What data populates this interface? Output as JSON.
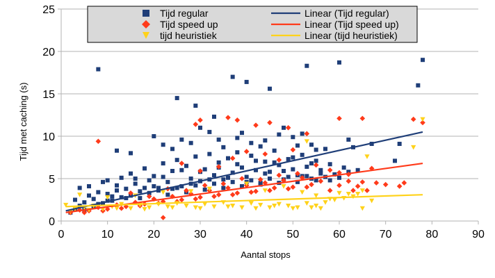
{
  "chart_data": {
    "type": "scatter",
    "title": "",
    "xlabel": "Aantal stops",
    "ylabel": "Tijd met caching (s)",
    "xlim": [
      0,
      90
    ],
    "ylim": [
      0,
      25
    ],
    "xticks": [
      0,
      10,
      20,
      30,
      40,
      50,
      60,
      70,
      80,
      90
    ],
    "yticks": [
      0,
      5,
      10,
      15,
      20,
      25
    ],
    "grid": "horizontal",
    "legend_position": "top",
    "series": [
      {
        "name": "Tijd regular",
        "color": "#1f3e78",
        "marker": "square",
        "points": [
          [
            8,
            17.9
          ],
          [
            25,
            14.5
          ],
          [
            29,
            13.6
          ],
          [
            33,
            12.3
          ],
          [
            37,
            17.0
          ],
          [
            40,
            16.4
          ],
          [
            45,
            15.6
          ],
          [
            53,
            18.3
          ],
          [
            60,
            18.7
          ],
          [
            77,
            16.0
          ],
          [
            78,
            19.0
          ],
          [
            12,
            8.3
          ],
          [
            15,
            8.0
          ],
          [
            20,
            10.0
          ],
          [
            22,
            9.0
          ],
          [
            24,
            8.5
          ],
          [
            26,
            9.6
          ],
          [
            28,
            9.2
          ],
          [
            30,
            11.0
          ],
          [
            32,
            10.5
          ],
          [
            34,
            9.6
          ],
          [
            35,
            8.7
          ],
          [
            38,
            9.8
          ],
          [
            39,
            10.4
          ],
          [
            41,
            9.2
          ],
          [
            43,
            8.8
          ],
          [
            44,
            9.5
          ],
          [
            47,
            10.2
          ],
          [
            48,
            11.0
          ],
          [
            50,
            9.9
          ],
          [
            51,
            8.9
          ],
          [
            52,
            10.3
          ],
          [
            54,
            9.0
          ],
          [
            55,
            8.4
          ],
          [
            57,
            8.5
          ],
          [
            62,
            9.6
          ],
          [
            63,
            8.7
          ],
          [
            67,
            9.1
          ],
          [
            72,
            7.1
          ],
          [
            73,
            9.1
          ],
          [
            64,
            6.0
          ],
          [
            2,
            1.0
          ],
          [
            3,
            2.5
          ],
          [
            4,
            1.8
          ],
          [
            5,
            2.2
          ],
          [
            6,
            3.0
          ],
          [
            7,
            2.6
          ],
          [
            8,
            3.4
          ],
          [
            9,
            4.6
          ],
          [
            10,
            3.2
          ],
          [
            10,
            4.8
          ],
          [
            11,
            2.9
          ],
          [
            12,
            4.2
          ],
          [
            13,
            5.1
          ],
          [
            14,
            3.8
          ],
          [
            15,
            5.6
          ],
          [
            16,
            4.4
          ],
          [
            17,
            3.5
          ],
          [
            18,
            6.2
          ],
          [
            19,
            4.8
          ],
          [
            20,
            5.3
          ],
          [
            21,
            3.9
          ],
          [
            22,
            6.8
          ],
          [
            23,
            4.6
          ],
          [
            24,
            5.9
          ],
          [
            25,
            7.2
          ],
          [
            26,
            4.1
          ],
          [
            27,
            6.5
          ],
          [
            28,
            5.0
          ],
          [
            29,
            7.6
          ],
          [
            30,
            4.7
          ],
          [
            31,
            6.1
          ],
          [
            32,
            7.9
          ],
          [
            33,
            5.4
          ],
          [
            34,
            6.9
          ],
          [
            35,
            4.9
          ],
          [
            36,
            7.4
          ],
          [
            37,
            5.7
          ],
          [
            38,
            8.1
          ],
          [
            39,
            6.3
          ],
          [
            40,
            5.2
          ],
          [
            41,
            7.7
          ],
          [
            42,
            6.0
          ],
          [
            43,
            4.5
          ],
          [
            44,
            7.0
          ],
          [
            45,
            5.8
          ],
          [
            46,
            8.3
          ],
          [
            47,
            6.6
          ],
          [
            48,
            4.9
          ],
          [
            49,
            7.3
          ],
          [
            50,
            6.1
          ],
          [
            51,
            5.4
          ],
          [
            52,
            7.8
          ],
          [
            53,
            6.4
          ],
          [
            54,
            5.0
          ],
          [
            55,
            7.1
          ],
          [
            56,
            6.0
          ],
          [
            57,
            5.2
          ],
          [
            58,
            6.7
          ],
          [
            59,
            5.5
          ],
          [
            61,
            6.3
          ],
          [
            62,
            5.8
          ],
          [
            3,
            1.4
          ],
          [
            5,
            1.3
          ],
          [
            7,
            1.7
          ],
          [
            9,
            2.1
          ],
          [
            11,
            2.4
          ],
          [
            13,
            2.8
          ],
          [
            15,
            3.0
          ],
          [
            17,
            2.7
          ],
          [
            19,
            3.3
          ],
          [
            21,
            3.6
          ],
          [
            23,
            3.1
          ],
          [
            25,
            3.9
          ],
          [
            27,
            3.4
          ],
          [
            29,
            4.2
          ],
          [
            31,
            3.7
          ],
          [
            33,
            4.4
          ],
          [
            35,
            3.9
          ],
          [
            37,
            4.6
          ],
          [
            39,
            4.1
          ],
          [
            41,
            4.8
          ],
          [
            43,
            4.3
          ],
          [
            45,
            5.0
          ],
          [
            47,
            4.5
          ],
          [
            49,
            5.2
          ],
          [
            51,
            4.6
          ],
          [
            53,
            5.3
          ],
          [
            55,
            4.8
          ],
          [
            4,
            3.9
          ],
          [
            6,
            4.1
          ],
          [
            8,
            2.0
          ],
          [
            10,
            2.4
          ],
          [
            12,
            3.6
          ],
          [
            14,
            2.7
          ],
          [
            16,
            5.0
          ],
          [
            18,
            3.9
          ],
          [
            20,
            4.1
          ],
          [
            22,
            5.2
          ],
          [
            24,
            3.8
          ],
          [
            26,
            6.0
          ],
          [
            28,
            4.4
          ],
          [
            30,
            5.8
          ],
          [
            32,
            4.9
          ],
          [
            34,
            6.3
          ],
          [
            36,
            5.1
          ],
          [
            38,
            6.7
          ],
          [
            40,
            4.6
          ],
          [
            42,
            7.1
          ],
          [
            44,
            5.6
          ],
          [
            46,
            6.9
          ],
          [
            48,
            5.9
          ],
          [
            50,
            7.5
          ],
          [
            52,
            5.3
          ],
          [
            54,
            6.8
          ],
          [
            56,
            5.6
          ],
          [
            58,
            4.8
          ],
          [
            60,
            5.1
          ]
        ]
      },
      {
        "name": "Tijd speed up",
        "color": "#ff3a1a",
        "marker": "diamond",
        "points": [
          [
            8,
            9.4
          ],
          [
            29,
            11.4
          ],
          [
            30,
            11.9
          ],
          [
            36,
            12.2
          ],
          [
            38,
            11.9
          ],
          [
            42,
            11.3
          ],
          [
            45,
            11.6
          ],
          [
            49,
            11.0
          ],
          [
            53,
            10.3
          ],
          [
            60,
            12.1
          ],
          [
            65,
            12.1
          ],
          [
            76,
            12.0
          ],
          [
            78,
            11.6
          ],
          [
            2,
            1.0
          ],
          [
            4,
            1.3
          ],
          [
            6,
            1.2
          ],
          [
            8,
            1.6
          ],
          [
            10,
            1.4
          ],
          [
            12,
            1.9
          ],
          [
            14,
            1.7
          ],
          [
            16,
            2.2
          ],
          [
            18,
            2.0
          ],
          [
            20,
            2.6
          ],
          [
            22,
            0.4
          ],
          [
            22,
            2.3
          ],
          [
            24,
            2.9
          ],
          [
            26,
            2.5
          ],
          [
            28,
            3.2
          ],
          [
            30,
            2.8
          ],
          [
            32,
            3.6
          ],
          [
            34,
            3.1
          ],
          [
            36,
            3.9
          ],
          [
            38,
            3.3
          ],
          [
            40,
            4.2
          ],
          [
            42,
            3.5
          ],
          [
            44,
            4.5
          ],
          [
            46,
            3.9
          ],
          [
            48,
            4.8
          ],
          [
            50,
            4.0
          ],
          [
            52,
            5.1
          ],
          [
            54,
            4.3
          ],
          [
            56,
            4.7
          ],
          [
            58,
            3.6
          ],
          [
            60,
            4.2
          ],
          [
            62,
            4.7
          ],
          [
            63,
            3.6
          ],
          [
            64,
            4.1
          ],
          [
            65,
            4.6
          ],
          [
            66,
            3.6
          ],
          [
            68,
            4.5
          ],
          [
            70,
            4.3
          ],
          [
            73,
            4.1
          ],
          [
            74,
            4.5
          ],
          [
            26,
            6.8
          ],
          [
            30,
            5.9
          ],
          [
            34,
            6.4
          ],
          [
            37,
            7.4
          ],
          [
            40,
            8.2
          ],
          [
            44,
            7.9
          ],
          [
            47,
            7.2
          ],
          [
            50,
            8.4
          ],
          [
            55,
            6.6
          ],
          [
            58,
            6.0
          ],
          [
            60,
            5.7
          ],
          [
            62,
            5.5
          ],
          [
            67,
            6.2
          ],
          [
            5,
            1.0
          ],
          [
            9,
            1.2
          ],
          [
            13,
            1.5
          ],
          [
            17,
            1.8
          ],
          [
            21,
            2.1
          ],
          [
            25,
            2.3
          ],
          [
            29,
            2.6
          ],
          [
            33,
            2.9
          ],
          [
            37,
            3.1
          ],
          [
            41,
            3.4
          ],
          [
            45,
            3.6
          ],
          [
            49,
            3.8
          ],
          [
            53,
            4.0
          ],
          [
            15,
            3.3
          ],
          [
            19,
            2.9
          ],
          [
            23,
            3.8
          ],
          [
            27,
            3.6
          ],
          [
            31,
            4.2
          ],
          [
            35,
            4.4
          ],
          [
            39,
            5.0
          ],
          [
            43,
            4.9
          ],
          [
            47,
            5.4
          ],
          [
            51,
            5.6
          ]
        ]
      },
      {
        "name": "tijd heuristiek",
        "color": "#ffd21a",
        "marker": "triangle-down",
        "points": [
          [
            1,
            1.9
          ],
          [
            3,
            1.4
          ],
          [
            5,
            1.6
          ],
          [
            7,
            1.8
          ],
          [
            9,
            1.4
          ],
          [
            11,
            1.7
          ],
          [
            13,
            2.0
          ],
          [
            15,
            1.5
          ],
          [
            17,
            1.9
          ],
          [
            19,
            1.6
          ],
          [
            21,
            2.0
          ],
          [
            23,
            1.7
          ],
          [
            25,
            2.1
          ],
          [
            27,
            1.8
          ],
          [
            29,
            1.6
          ],
          [
            31,
            2.0
          ],
          [
            33,
            1.7
          ],
          [
            35,
            2.2
          ],
          [
            37,
            1.8
          ],
          [
            39,
            1.6
          ],
          [
            41,
            2.1
          ],
          [
            43,
            1.9
          ],
          [
            45,
            1.6
          ],
          [
            47,
            2.0
          ],
          [
            49,
            1.8
          ],
          [
            51,
            1.6
          ],
          [
            53,
            2.1
          ],
          [
            55,
            1.8
          ],
          [
            57,
            2.2
          ],
          [
            59,
            2.5
          ],
          [
            61,
            2.7
          ],
          [
            63,
            2.9
          ],
          [
            64,
            3.2
          ],
          [
            65,
            3.6
          ],
          [
            66,
            7.6
          ],
          [
            58,
            2.6
          ],
          [
            62,
            3.2
          ],
          [
            67,
            2.4
          ],
          [
            76,
            8.7
          ],
          [
            78,
            12.0
          ],
          [
            53,
            9.4
          ],
          [
            4,
            3.1
          ],
          [
            10,
            2.8
          ],
          [
            16,
            3.0
          ],
          [
            22,
            3.4
          ],
          [
            28,
            3.5
          ],
          [
            32,
            3.8
          ],
          [
            40,
            4.4
          ],
          [
            44,
            3.6
          ],
          [
            48,
            4.1
          ],
          [
            52,
            3.4
          ],
          [
            55,
            3.0
          ],
          [
            60,
            3.3
          ],
          [
            65,
            1.5
          ],
          [
            56,
            1.5
          ],
          [
            2,
            1.1
          ],
          [
            6,
            1.3
          ],
          [
            12,
            1.5
          ],
          [
            18,
            1.4
          ],
          [
            24,
            1.6
          ],
          [
            30,
            1.5
          ],
          [
            36,
            1.7
          ],
          [
            42,
            1.5
          ],
          [
            46,
            1.8
          ],
          [
            50,
            1.5
          ],
          [
            54,
            1.6
          ]
        ]
      }
    ],
    "trendlines": [
      {
        "name": "Linear (Tijd regular)",
        "color": "#1f3e78",
        "x": [
          1,
          78
        ],
        "y": [
          1.2,
          10.5
        ]
      },
      {
        "name": "Linear (Tijd speed up)",
        "color": "#ff3a1a",
        "x": [
          1,
          78
        ],
        "y": [
          1.0,
          6.8
        ]
      },
      {
        "name": "Linear (tijd heuristiek)",
        "color": "#ffd21a",
        "x": [
          1,
          78
        ],
        "y": [
          1.7,
          3.1
        ]
      }
    ]
  }
}
